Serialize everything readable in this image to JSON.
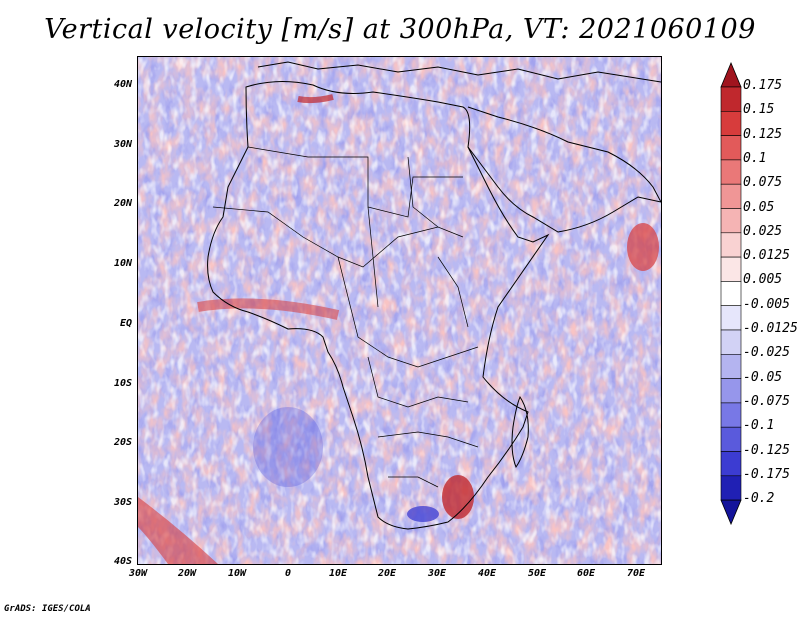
{
  "title": "Vertical velocity [m/s] at 300hPa, VT: 2021060109",
  "footer": "GrADS: IGES/COLA",
  "lat_ticks": [
    "40N",
    "30N",
    "20N",
    "10N",
    "EQ",
    "10S",
    "20S",
    "30S",
    "40S"
  ],
  "lon_ticks": [
    "30W",
    "20W",
    "10W",
    "0",
    "10E",
    "20E",
    "30E",
    "40E",
    "50E",
    "60E",
    "70E"
  ],
  "colorbar": {
    "levels": [
      "0.175",
      "0.15",
      "0.125",
      "0.1",
      "0.075",
      "0.05",
      "0.025",
      "0.0125",
      "0.005",
      "-0.005",
      "-0.0125",
      "-0.025",
      "-0.05",
      "-0.075",
      "-0.1",
      "-0.125",
      "-0.175",
      "-0.2"
    ],
    "colors": [
      "#a0141e",
      "#c0282d",
      "#d73c3c",
      "#e25a5a",
      "#ea7878",
      "#f09696",
      "#f5b4b4",
      "#f9d2d2",
      "#fbe6e6",
      "#ffffff",
      "#e6e6fb",
      "#d2d2f5",
      "#b4b4f0",
      "#9696eb",
      "#7878e6",
      "#5a5adc",
      "#3c3cd2",
      "#2020b4",
      "#14149b"
    ]
  },
  "map": {
    "land_border_color": "#000000",
    "background_color": "#c9c9f7"
  }
}
